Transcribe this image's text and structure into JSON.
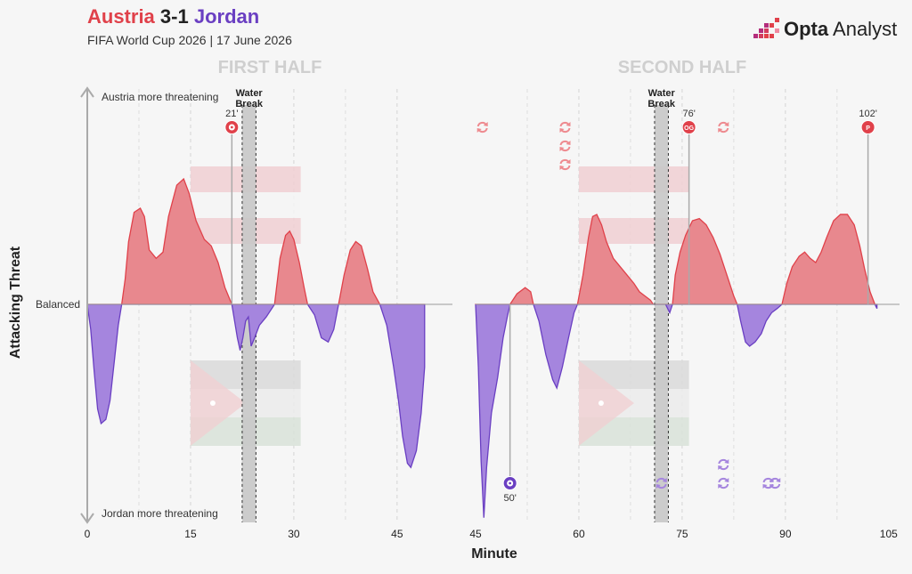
{
  "header": {
    "home_team": "Austria",
    "score": "3-1",
    "away_team": "Jordan",
    "subtitle": "FIFA World Cup 2026 | 17 June 2026"
  },
  "logo": {
    "brand": "Opta",
    "product": " Analyst"
  },
  "colors": {
    "home": "#e0414a",
    "home_fill": "#e8888e",
    "away": "#6a3fc2",
    "away_fill": "#a585de",
    "water_break": "#c8c8c8",
    "grid": "#d4d4d4",
    "axis": "#aaaaaa"
  },
  "chart_data": {
    "type": "area",
    "title": "Austria 3-1 Jordan",
    "xlabel": "Minute",
    "ylabel": "Attacking Threat",
    "y_top_label": "Austria more threatening",
    "y_bottom_label": "Jordan more threatening",
    "y_mid_label": "Balanced",
    "ylim": [
      -1,
      1
    ],
    "halves": [
      {
        "label": "FIRST HALF",
        "xlim": [
          0,
          49
        ],
        "ticks": [
          0,
          15,
          30,
          45
        ],
        "water_break": {
          "start": 22.5,
          "end": 24.5,
          "label": "Water Break"
        },
        "series": [
          [
            0,
            0
          ],
          [
            0.5,
            -0.12
          ],
          [
            1,
            -0.32
          ],
          [
            1.5,
            -0.5
          ],
          [
            2,
            -0.57
          ],
          [
            2.7,
            -0.55
          ],
          [
            3.3,
            -0.46
          ],
          [
            4,
            -0.25
          ],
          [
            4.5,
            -0.1
          ],
          [
            5,
            0
          ],
          [
            5.5,
            0.12
          ],
          [
            6,
            0.3
          ],
          [
            6.8,
            0.44
          ],
          [
            7.7,
            0.46
          ],
          [
            8.3,
            0.42
          ],
          [
            9,
            0.26
          ],
          [
            10,
            0.22
          ],
          [
            11,
            0.25
          ],
          [
            11.8,
            0.42
          ],
          [
            13,
            0.57
          ],
          [
            14,
            0.6
          ],
          [
            14.8,
            0.53
          ],
          [
            15.8,
            0.4
          ],
          [
            17,
            0.31
          ],
          [
            18,
            0.28
          ],
          [
            19,
            0.2
          ],
          [
            20,
            0.08
          ],
          [
            21,
            0
          ],
          [
            21.4,
            -0.08
          ],
          [
            21.8,
            -0.16
          ],
          [
            22.2,
            -0.22
          ],
          [
            22.6,
            -0.16
          ],
          [
            23,
            -0.08
          ],
          [
            23.4,
            -0.06
          ],
          [
            23.8,
            -0.2
          ],
          [
            24.3,
            -0.16
          ],
          [
            25,
            -0.1
          ],
          [
            26,
            -0.06
          ],
          [
            27.2,
            0
          ],
          [
            28,
            0.22
          ],
          [
            28.8,
            0.33
          ],
          [
            29.4,
            0.35
          ],
          [
            30,
            0.31
          ],
          [
            30.8,
            0.2
          ],
          [
            31.5,
            0.08
          ],
          [
            32,
            0
          ],
          [
            33,
            -0.05
          ],
          [
            34,
            -0.16
          ],
          [
            35,
            -0.18
          ],
          [
            35.8,
            -0.12
          ],
          [
            36.5,
            0
          ],
          [
            37.3,
            0.14
          ],
          [
            38.2,
            0.26
          ],
          [
            39,
            0.3
          ],
          [
            39.8,
            0.28
          ],
          [
            40.7,
            0.17
          ],
          [
            41.5,
            0.06
          ],
          [
            42.5,
            0
          ],
          [
            43.5,
            -0.1
          ],
          [
            44.5,
            -0.3
          ],
          [
            45.2,
            -0.46
          ],
          [
            45.8,
            -0.63
          ],
          [
            46.5,
            -0.76
          ],
          [
            47,
            -0.78
          ],
          [
            47.8,
            -0.7
          ],
          [
            48.5,
            -0.52
          ],
          [
            49,
            -0.3
          ],
          [
            49,
            0
          ]
        ],
        "goals": [
          {
            "team": "home",
            "minute": 21,
            "label": "21'",
            "type": "goal"
          }
        ],
        "subs_home": [],
        "subs_away": []
      },
      {
        "label": "SECOND HALF",
        "xlim": [
          45,
          104
        ],
        "ticks": [
          45,
          60,
          75,
          90,
          105
        ],
        "water_break": {
          "start": 71,
          "end": 73,
          "label": "Water Break"
        },
        "series": [
          [
            45,
            0
          ],
          [
            45.4,
            -0.3
          ],
          [
            45.8,
            -0.75
          ],
          [
            46.2,
            -1.02
          ],
          [
            46.6,
            -0.78
          ],
          [
            47.3,
            -0.52
          ],
          [
            48.2,
            -0.35
          ],
          [
            49,
            -0.16
          ],
          [
            49.6,
            -0.06
          ],
          [
            50,
            0
          ],
          [
            51,
            0.05
          ],
          [
            52.2,
            0.08
          ],
          [
            53,
            0.06
          ],
          [
            53.4,
            0
          ],
          [
            54.2,
            -0.08
          ],
          [
            55.2,
            -0.24
          ],
          [
            56.2,
            -0.36
          ],
          [
            56.8,
            -0.4
          ],
          [
            57.6,
            -0.3
          ],
          [
            58.5,
            -0.16
          ],
          [
            59.3,
            -0.04
          ],
          [
            59.8,
            0
          ],
          [
            60.6,
            0.14
          ],
          [
            61.4,
            0.32
          ],
          [
            62,
            0.42
          ],
          [
            62.6,
            0.43
          ],
          [
            63.3,
            0.38
          ],
          [
            64,
            0.3
          ],
          [
            65,
            0.22
          ],
          [
            66,
            0.18
          ],
          [
            67,
            0.14
          ],
          [
            68,
            0.1
          ],
          [
            68.8,
            0.06
          ],
          [
            69.6,
            0.04
          ],
          [
            70.4,
            0.02
          ],
          [
            70.8,
            0
          ],
          [
            72.6,
            0
          ],
          [
            73.2,
            -0.04
          ],
          [
            73.6,
            0
          ],
          [
            74,
            0.14
          ],
          [
            74.7,
            0.25
          ],
          [
            75.5,
            0.33
          ],
          [
            76.5,
            0.4
          ],
          [
            77.5,
            0.41
          ],
          [
            78.5,
            0.38
          ],
          [
            79.5,
            0.32
          ],
          [
            80.5,
            0.24
          ],
          [
            81.5,
            0.14
          ],
          [
            82.5,
            0.04
          ],
          [
            83,
            0
          ],
          [
            83.5,
            -0.08
          ],
          [
            84.2,
            -0.18
          ],
          [
            84.8,
            -0.2
          ],
          [
            85.6,
            -0.18
          ],
          [
            86.5,
            -0.14
          ],
          [
            87.2,
            -0.08
          ],
          [
            88,
            -0.04
          ],
          [
            88.8,
            -0.02
          ],
          [
            89.5,
            0
          ],
          [
            90.2,
            0.1
          ],
          [
            91,
            0.18
          ],
          [
            92,
            0.23
          ],
          [
            92.8,
            0.25
          ],
          [
            93.6,
            0.22
          ],
          [
            94.4,
            0.2
          ],
          [
            95.2,
            0.25
          ],
          [
            96,
            0.32
          ],
          [
            97,
            0.4
          ],
          [
            98,
            0.43
          ],
          [
            99,
            0.43
          ],
          [
            100,
            0.38
          ],
          [
            100.8,
            0.28
          ],
          [
            101.5,
            0.17
          ],
          [
            102.3,
            0.06
          ],
          [
            103,
            0
          ],
          [
            103.3,
            -0.02
          ]
        ],
        "goals": [
          {
            "team": "away",
            "minute": 50,
            "label": "50'",
            "type": "goal"
          },
          {
            "team": "home",
            "minute": 76,
            "label": "76'",
            "type": "own-goal",
            "marker": "OG"
          },
          {
            "team": "home",
            "minute": 102,
            "label": "102'",
            "type": "penalty",
            "marker": "P"
          }
        ],
        "subs_home": [
          [
            46,
            0
          ],
          [
            58,
            0
          ],
          [
            58,
            1
          ],
          [
            58,
            2
          ],
          [
            81,
            0
          ]
        ],
        "subs_away": [
          [
            72,
            0
          ],
          [
            81,
            0
          ],
          [
            81,
            1
          ],
          [
            87.5,
            0
          ],
          [
            88.5,
            0
          ]
        ]
      }
    ],
    "flag_bands": {
      "austria": {
        "colors": [
          "#f0cfd2",
          "#f4f4f4",
          "#f0cfd2"
        ]
      },
      "jordan": {
        "colors": [
          "#d9d9d9",
          "#ebebeb",
          "#d8e2d8"
        ],
        "triangle": "#f0cfd2"
      }
    }
  }
}
